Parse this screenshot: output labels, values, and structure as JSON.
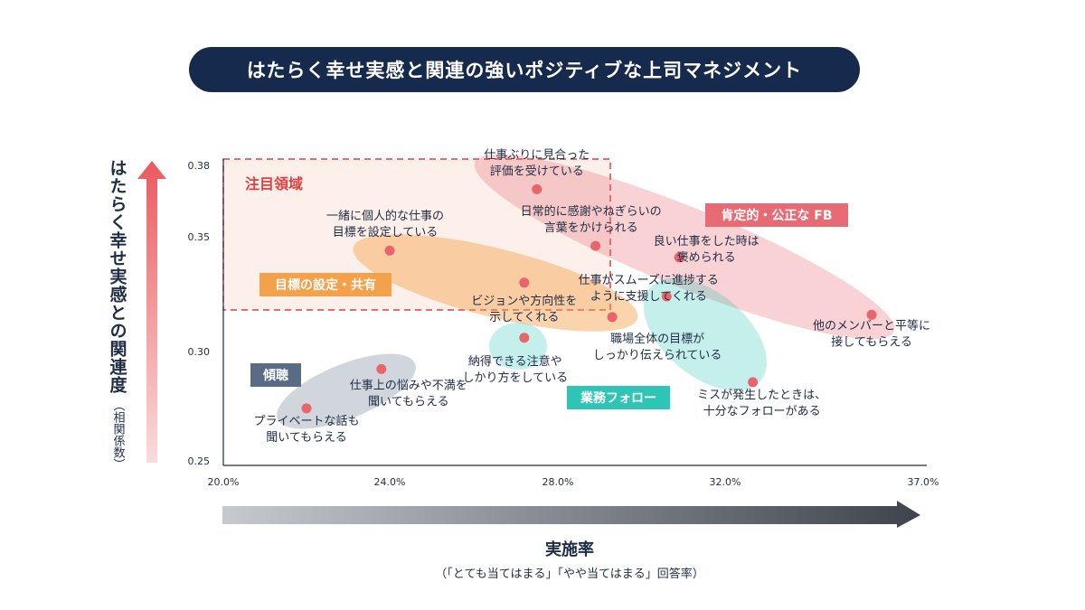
{
  "title": "はたらく幸せ実感と関連の強いポジティブな上司マネジメント",
  "colors": {
    "title_bg": "#152a4d",
    "point": "#e8656b",
    "focus_region": "#e0403f",
    "goal_group": "#f5a04a",
    "feedback_group": "#e86a74",
    "follow_group": "#2ec4b6",
    "listen_group": "#5a6b85"
  },
  "chart_data": {
    "type": "scatter",
    "xlabel": "実施率",
    "xlabel_note": "（「とても当てはまる」「やや当てはまる」回答率）",
    "ylabel": "はたらく幸せ実感との関連度",
    "ylabel_note": "（相関係数）",
    "x_ticks": [
      "20.0%",
      "24.0%",
      "28.0%",
      "32.0%",
      "37.0%"
    ],
    "y_ticks": [
      "0.38",
      "0.35",
      "0.30",
      "0.25"
    ],
    "focus_region_label": "注目領域",
    "groups": [
      {
        "name": "目標の設定・共有",
        "color": "#f5a04a"
      },
      {
        "name": "肯定的・公正な FB",
        "color": "#e86a74"
      },
      {
        "name": "業務フォロー",
        "color": "#2ec4b6"
      },
      {
        "name": "傾聴",
        "color": "#5a6b85"
      }
    ],
    "points": [
      {
        "label": [
          "仕事ぶりに見合った",
          "評価を受けている"
        ],
        "x": 27.5,
        "y": 0.37
      },
      {
        "label": [
          "日常的に感謝やねぎらいの",
          "言葉をかけられる"
        ],
        "x": 28.9,
        "y": 0.346
      },
      {
        "label": [
          "一緒に個人的な仕事の",
          "目標を設定している"
        ],
        "x": 24.0,
        "y": 0.344
      },
      {
        "label": [
          "良い仕事をした時は",
          "褒められる"
        ],
        "x": 30.9,
        "y": 0.341
      },
      {
        "label": [
          "ビジョンや方向性を",
          "示してくれる"
        ],
        "x": 27.2,
        "y": 0.33
      },
      {
        "label": [
          "仕事がスムーズに進捗する",
          "ように支援してくれる"
        ],
        "x": 30.6,
        "y": 0.324
      },
      {
        "label": [
          "職場全体の目標が",
          "しっかり伝えられている"
        ],
        "x": 29.3,
        "y": 0.315
      },
      {
        "label": [
          "他のメンバーと平等に",
          "接してもらえる"
        ],
        "x": 35.7,
        "y": 0.316
      },
      {
        "label": [
          "納得できる注意や",
          "しかり方をしている"
        ],
        "x": 27.2,
        "y": 0.306
      },
      {
        "label": [
          "仕事上の悩みや不満を",
          "聞いてもらえる"
        ],
        "x": 23.8,
        "y": 0.292
      },
      {
        "label": [
          "ミスが発生したときは、",
          "十分なフォローがある"
        ],
        "x": 32.7,
        "y": 0.286
      },
      {
        "label": [
          "プライベートな話も",
          "聞いてもらえる"
        ],
        "x": 22.0,
        "y": 0.274
      }
    ]
  }
}
